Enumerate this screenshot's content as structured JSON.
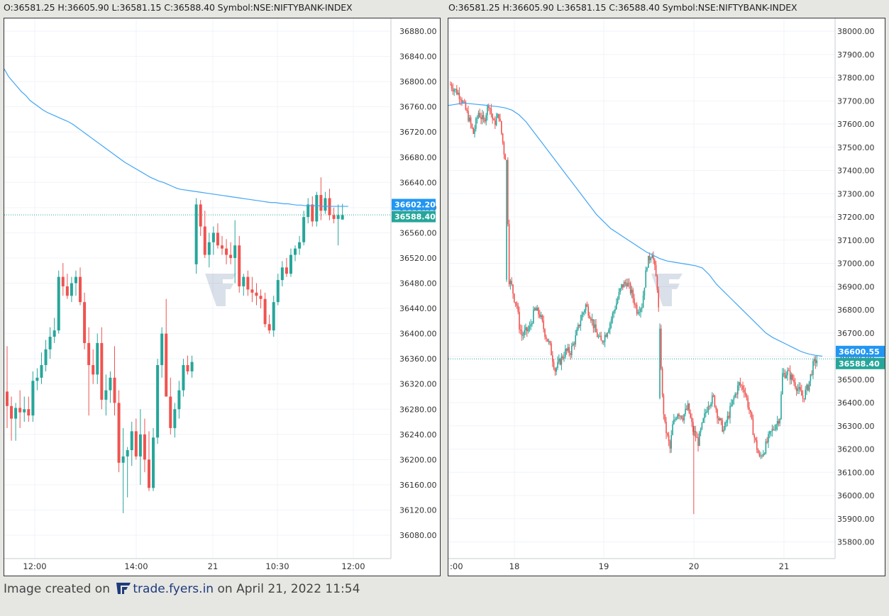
{
  "left_header": {
    "o_label": "O:",
    "o_value": "36581.25",
    "h_label": "H:",
    "h_value": "36605.90",
    "l_label": "L:",
    "l_value": "36581.15",
    "c_label": "C:",
    "c_value": "36588.40",
    "symbol_label": "Symbol:",
    "symbol_value": "NSE:NIFTYBANK-INDEX"
  },
  "right_header": {
    "o_label": "O:",
    "o_value": "36581.25",
    "h_label": "H:",
    "h_value": "36605.90",
    "l_label": "L:",
    "l_value": "36581.15",
    "c_label": "C:",
    "c_value": "36588.40",
    "symbol_label": "Symbol:",
    "symbol_value": "NSE:NIFTYBANK-INDEX"
  },
  "footer": {
    "prefix": "Image created on",
    "brand": "trade.fyers.in",
    "suffix": "on April 21, 2022 11:54"
  },
  "colors": {
    "up": "#26a69a",
    "down": "#ef5350",
    "ma_line": "#42a5f5",
    "ma_tag": "#2196f3",
    "price_tag": "#26a69a",
    "grid": "#f0f3fa"
  },
  "chart_data": [
    {
      "type": "candlestick",
      "symbol": "NSE:NIFTYBANK-INDEX",
      "ylim": [
        36060,
        36910
      ],
      "y_ticks": [
        "36880.00",
        "36840.00",
        "36800.00",
        "36760.00",
        "36720.00",
        "36680.00",
        "36640.00",
        "36600.00",
        "36560.00",
        "36520.00",
        "36480.00",
        "36440.00",
        "36400.00",
        "36360.00",
        "36320.00",
        "36280.00",
        "36240.00",
        "36200.00",
        "36160.00",
        "36120.00",
        "36080.00"
      ],
      "x_ticks": [
        "12:00",
        "14:00",
        "21",
        "10:30",
        "12:00"
      ],
      "moving_average_last": "36602.20",
      "last_price": "36588.40",
      "ohlc": [
        [
          36308,
          36380,
          36250,
          36285
        ],
        [
          36285,
          36300,
          36230,
          36265
        ],
        [
          36265,
          36290,
          36230,
          36282
        ],
        [
          36282,
          36310,
          36250,
          36275
        ],
        [
          36275,
          36300,
          36260,
          36280
        ],
        [
          36280,
          36300,
          36260,
          36270
        ],
        [
          36270,
          36340,
          36260,
          36325
        ],
        [
          36325,
          36345,
          36310,
          36330
        ],
        [
          36330,
          36370,
          36320,
          36350
        ],
        [
          36350,
          36390,
          36340,
          36375
        ],
        [
          36375,
          36410,
          36360,
          36395
        ],
        [
          36395,
          36425,
          36385,
          36405
        ],
        [
          36405,
          36500,
          36400,
          36490
        ],
        [
          36490,
          36512,
          36460,
          36475
        ],
        [
          36475,
          36495,
          36455,
          36460
        ],
        [
          36460,
          36490,
          36450,
          36480
        ],
        [
          36480,
          36500,
          36460,
          36490
        ],
        [
          36490,
          36505,
          36445,
          36450
        ],
        [
          36450,
          36465,
          36375,
          36385
        ],
        [
          36385,
          36410,
          36270,
          36350
        ],
        [
          36350,
          36375,
          36320,
          36335
        ],
        [
          36335,
          36400,
          36320,
          36385
        ],
        [
          36385,
          36410,
          36280,
          36295
        ],
        [
          36295,
          36335,
          36270,
          36310
        ],
        [
          36310,
          36340,
          36290,
          36330
        ],
        [
          36330,
          36380,
          36270,
          36290
        ],
        [
          36290,
          36310,
          36180,
          36195
        ],
        [
          36195,
          36250,
          36115,
          36205
        ],
        [
          36205,
          36220,
          36140,
          36215
        ],
        [
          36215,
          36260,
          36190,
          36245
        ],
        [
          36245,
          36265,
          36200,
          36205
        ],
        [
          36205,
          36280,
          36160,
          36240
        ],
        [
          36240,
          36265,
          36180,
          36200
        ],
        [
          36200,
          36245,
          36150,
          36155
        ],
        [
          36155,
          36250,
          36150,
          36235
        ],
        [
          36235,
          36360,
          36225,
          36350
        ],
        [
          36350,
          36410,
          36330,
          36400
        ],
        [
          36400,
          36455,
          36300,
          36300
        ],
        [
          36300,
          36330,
          36240,
          36250
        ],
        [
          36250,
          36290,
          36235,
          36280
        ],
        [
          36280,
          36325,
          36265,
          36310
        ],
        [
          36310,
          36360,
          36300,
          36350
        ],
        [
          36350,
          36365,
          36335,
          36340
        ],
        [
          36340,
          36365,
          36330,
          36355
        ],
        [
          36510,
          36615,
          36495,
          36605
        ],
        [
          36605,
          36612,
          36555,
          36570
        ],
        [
          36570,
          36595,
          36520,
          36525
        ],
        [
          36525,
          36560,
          36505,
          36545
        ],
        [
          36545,
          36570,
          36525,
          36560
        ],
        [
          36560,
          36575,
          36535,
          36540
        ],
        [
          36540,
          36555,
          36525,
          36535
        ],
        [
          36535,
          36550,
          36510,
          36525
        ],
        [
          36525,
          36545,
          36510,
          36520
        ],
        [
          36520,
          36580,
          36480,
          36540
        ],
        [
          36540,
          36555,
          36465,
          36475
        ],
        [
          36475,
          36495,
          36460,
          36490
        ],
        [
          36490,
          36500,
          36460,
          36470
        ],
        [
          36470,
          36490,
          36450,
          36465
        ],
        [
          36465,
          36480,
          36445,
          36460
        ],
        [
          36460,
          36470,
          36440,
          36455
        ],
        [
          36455,
          36465,
          36410,
          36415
        ],
        [
          36415,
          36430,
          36400,
          36405
        ],
        [
          36405,
          36460,
          36395,
          36450
        ],
        [
          36450,
          36495,
          36445,
          36485
        ],
        [
          36485,
          36515,
          36475,
          36505
        ],
        [
          36505,
          36520,
          36490,
          36495
        ],
        [
          36495,
          36535,
          36490,
          36525
        ],
        [
          36525,
          36540,
          36515,
          36535
        ],
        [
          36535,
          36555,
          36525,
          36545
        ],
        [
          36545,
          36595,
          36540,
          36585
        ],
        [
          36585,
          36615,
          36575,
          36605
        ],
        [
          36605,
          36618,
          36570,
          36578
        ],
        [
          36578,
          36625,
          36570,
          36620
        ],
        [
          36620,
          36648,
          36580,
          36595
        ],
        [
          36595,
          36625,
          36590,
          36615
        ],
        [
          36615,
          36630,
          36580,
          36588
        ],
        [
          36588,
          36600,
          36575,
          36582
        ],
        [
          36582,
          36605,
          36540,
          36588
        ],
        [
          36581,
          36606,
          36581,
          36588
        ]
      ],
      "moving_average": [
        36820,
        36808,
        36800,
        36792,
        36784,
        36778,
        36770,
        36765,
        36760,
        36755,
        36751,
        36748,
        36745,
        36742,
        36739,
        36736,
        36732,
        36727,
        36722,
        36717,
        36712,
        36707,
        36702,
        36697,
        36692,
        36687,
        36682,
        36677,
        36672,
        36668,
        36664,
        36660,
        36656,
        36652,
        36648,
        36645,
        36642,
        36640,
        36637,
        36634,
        36631,
        36629,
        36628,
        36627,
        36626,
        36625,
        36624,
        36623,
        36622,
        36621,
        36620,
        36619,
        36618,
        36617,
        36616,
        36615,
        36614,
        36613,
        36612,
        36611,
        36610,
        36609,
        36608,
        36608,
        36607,
        36606,
        36606,
        36605,
        36604,
        36604,
        36603,
        36603,
        36603,
        36603,
        36602,
        36602,
        36602,
        36602,
        36602,
        36602,
        36602
      ]
    },
    {
      "type": "candlestick",
      "symbol": "NSE:NIFTYBANK-INDEX",
      "ylim": [
        35740,
        38050
      ],
      "y_ticks": [
        "38000.00",
        "37900.00",
        "37800.00",
        "37700.00",
        "37600.00",
        "37500.00",
        "37400.00",
        "37300.00",
        "37200.00",
        "37100.00",
        "37000.00",
        "36900.00",
        "36800.00",
        "36700.00",
        "36600.00",
        "36500.00",
        "36400.00",
        "36300.00",
        "36200.00",
        "36100.00",
        "36000.00",
        "35900.00",
        "35800.00"
      ],
      "x_ticks": [
        ":00",
        "18",
        "19",
        "20",
        "21"
      ],
      "moving_average_last": "36600.55",
      "last_price": "36588.40",
      "close_path": [
        [
          0,
          37770
        ],
        [
          4,
          37720
        ],
        [
          7,
          37630
        ],
        [
          9,
          37560
        ],
        [
          11,
          37650
        ],
        [
          13,
          37610
        ],
        [
          15,
          37690
        ],
        [
          17,
          37600
        ],
        [
          19,
          37640
        ],
        [
          20,
          37560
        ],
        [
          21,
          37480
        ],
        [
          22,
          37440
        ],
        [
          23,
          36930
        ],
        [
          24,
          36900
        ],
        [
          25,
          36850
        ],
        [
          26,
          36820
        ],
        [
          27,
          36730
        ],
        [
          28,
          36690
        ],
        [
          29,
          36700
        ],
        [
          31,
          36720
        ],
        [
          33,
          36800
        ],
        [
          35,
          36780
        ],
        [
          37,
          36700
        ],
        [
          39,
          36640
        ],
        [
          41,
          36540
        ],
        [
          43,
          36580
        ],
        [
          45,
          36620
        ],
        [
          47,
          36620
        ],
        [
          49,
          36680
        ],
        [
          51,
          36760
        ],
        [
          53,
          36820
        ],
        [
          55,
          36770
        ],
        [
          57,
          36700
        ],
        [
          59,
          36660
        ],
        [
          61,
          36700
        ],
        [
          63,
          36760
        ],
        [
          65,
          36830
        ],
        [
          67,
          36900
        ],
        [
          69,
          36920
        ],
        [
          71,
          36870
        ],
        [
          73,
          36800
        ],
        [
          75,
          36820
        ],
        [
          77,
          37000
        ],
        [
          79,
          37050
        ],
        [
          81,
          36900
        ],
        [
          82,
          36700
        ],
        [
          83,
          36420
        ],
        [
          84,
          36300
        ],
        [
          85,
          36250
        ],
        [
          86,
          36200
        ],
        [
          87,
          36300
        ],
        [
          89,
          36360
        ],
        [
          91,
          36340
        ],
        [
          93,
          36380
        ],
        [
          95,
          36280
        ],
        [
          97,
          36230
        ],
        [
          99,
          36320
        ],
        [
          101,
          36400
        ],
        [
          103,
          36420
        ],
        [
          105,
          36330
        ],
        [
          107,
          36280
        ],
        [
          109,
          36350
        ],
        [
          111,
          36420
        ],
        [
          113,
          36480
        ],
        [
          115,
          36460
        ],
        [
          117,
          36370
        ],
        [
          119,
          36250
        ],
        [
          121,
          36160
        ],
        [
          123,
          36200
        ],
        [
          125,
          36260
        ],
        [
          127,
          36300
        ],
        [
          129,
          36340
        ],
        [
          130,
          36520
        ],
        [
          132,
          36530
        ],
        [
          134,
          36500
        ],
        [
          136,
          36460
        ],
        [
          138,
          36420
        ],
        [
          140,
          36470
        ],
        [
          142,
          36560
        ],
        [
          143,
          36580
        ],
        [
          144,
          36588
        ]
      ],
      "moving_average": [
        37680,
        37685,
        37690,
        37688,
        37685,
        37682,
        37678,
        37675,
        37670,
        37660,
        37640,
        37610,
        37570,
        37530,
        37490,
        37450,
        37410,
        37370,
        37330,
        37290,
        37250,
        37210,
        37180,
        37150,
        37130,
        37110,
        37090,
        37070,
        37050,
        37035,
        37020,
        37010,
        37005,
        37000,
        36995,
        36990,
        36980,
        36950,
        36910,
        36880,
        36850,
        36820,
        36790,
        36760,
        36730,
        36700,
        36680,
        36665,
        36650,
        36635,
        36620,
        36610,
        36604,
        36600
      ]
    }
  ]
}
